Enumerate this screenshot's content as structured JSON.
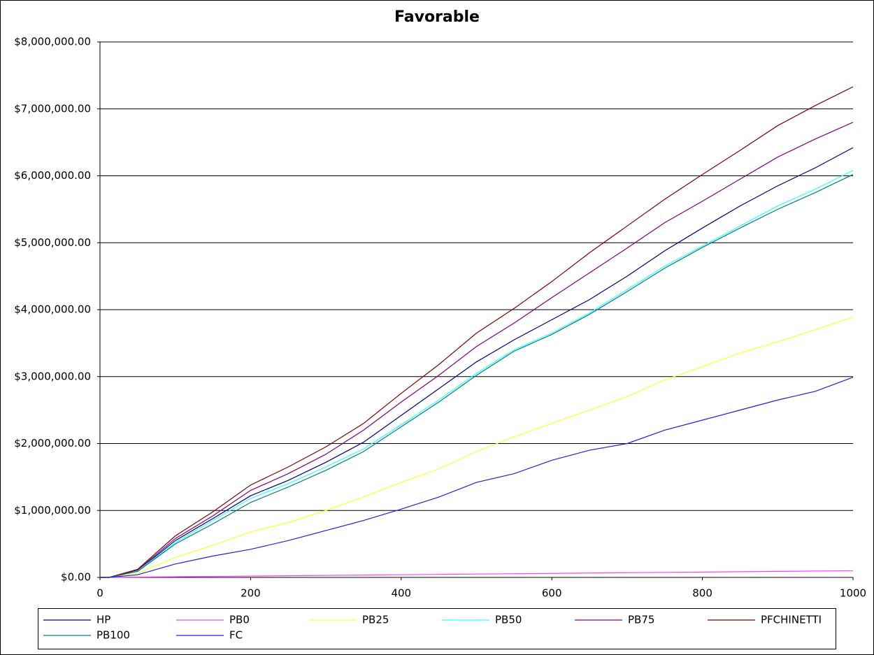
{
  "chart_data": {
    "type": "line",
    "title": "Favorable",
    "x": [
      0,
      12,
      50,
      100,
      150,
      200,
      250,
      300,
      350,
      400,
      450,
      500,
      550,
      600,
      650,
      700,
      750,
      800,
      850,
      900,
      950,
      1000
    ],
    "series": [
      {
        "name": "HP",
        "color": "#000080",
        "values": [
          0,
          0,
          100000,
          550000,
          880000,
          1220000,
          1450000,
          1720000,
          2020000,
          2420000,
          2820000,
          3220000,
          3550000,
          3850000,
          4150000,
          4500000,
          4880000,
          5220000,
          5550000,
          5850000,
          6120000,
          6420000
        ]
      },
      {
        "name": "PB0",
        "color": "#ff40ff",
        "values": [
          0,
          0,
          5000,
          10000,
          15000,
          20000,
          25000,
          30000,
          35000,
          40000,
          45000,
          50000,
          55000,
          60000,
          65000,
          70000,
          75000,
          80000,
          85000,
          90000,
          95000,
          100000
        ]
      },
      {
        "name": "PB25",
        "color": "#ffff33",
        "values": [
          0,
          0,
          60000,
          300000,
          480000,
          680000,
          820000,
          1000000,
          1200000,
          1420000,
          1620000,
          1880000,
          2100000,
          2300000,
          2500000,
          2700000,
          2950000,
          3150000,
          3350000,
          3520000,
          3700000,
          3890000
        ]
      },
      {
        "name": "PB50",
        "color": "#33ffff",
        "values": [
          0,
          0,
          100000,
          520000,
          850000,
          1180000,
          1400000,
          1650000,
          1920000,
          2280000,
          2650000,
          3050000,
          3400000,
          3650000,
          3950000,
          4300000,
          4650000,
          4950000,
          5250000,
          5550000,
          5800000,
          6080000
        ]
      },
      {
        "name": "PB75",
        "color": "#800080",
        "values": [
          0,
          0,
          110000,
          580000,
          920000,
          1300000,
          1550000,
          1840000,
          2200000,
          2620000,
          3020000,
          3450000,
          3800000,
          4180000,
          4550000,
          4920000,
          5300000,
          5620000,
          5950000,
          6280000,
          6550000,
          6800000
        ]
      },
      {
        "name": "PFCHINETTI",
        "color": "#800000",
        "values": [
          0,
          0,
          120000,
          620000,
          980000,
          1380000,
          1650000,
          1950000,
          2300000,
          2750000,
          3180000,
          3650000,
          4020000,
          4420000,
          4850000,
          5250000,
          5650000,
          6020000,
          6380000,
          6750000,
          7050000,
          7330000
        ]
      },
      {
        "name": "PB100",
        "color": "#008080",
        "values": [
          0,
          0,
          90000,
          500000,
          800000,
          1120000,
          1350000,
          1600000,
          1880000,
          2250000,
          2620000,
          3020000,
          3380000,
          3630000,
          3930000,
          4270000,
          4620000,
          4930000,
          5220000,
          5500000,
          5750000,
          6020000
        ]
      },
      {
        "name": "FC",
        "color": "#2020e0",
        "values": [
          0,
          0,
          40000,
          200000,
          320000,
          420000,
          550000,
          700000,
          850000,
          1020000,
          1200000,
          1420000,
          1550000,
          1750000,
          1900000,
          2000000,
          2200000,
          2350000,
          2500000,
          2650000,
          2780000,
          2990000
        ]
      }
    ],
    "xlim": [
      0,
      1000
    ],
    "xticks": [
      0,
      200,
      400,
      600,
      800,
      1000
    ],
    "ylim": [
      0,
      8000000
    ],
    "yticks": [
      {
        "value": 0,
        "label": "$0.00"
      },
      {
        "value": 1000000,
        "label": "$1,000,000.00"
      },
      {
        "value": 2000000,
        "label": "$2,000,000.00"
      },
      {
        "value": 3000000,
        "label": "$3,000,000.00"
      },
      {
        "value": 4000000,
        "label": "$4,000,000.00"
      },
      {
        "value": 5000000,
        "label": "$5,000,000.00"
      },
      {
        "value": 6000000,
        "label": "$6,000,000.00"
      },
      {
        "value": 7000000,
        "label": "$7,000,000.00"
      },
      {
        "value": 8000000,
        "label": "$8,000,000.00"
      }
    ],
    "grid": true,
    "legend": "bottom"
  }
}
